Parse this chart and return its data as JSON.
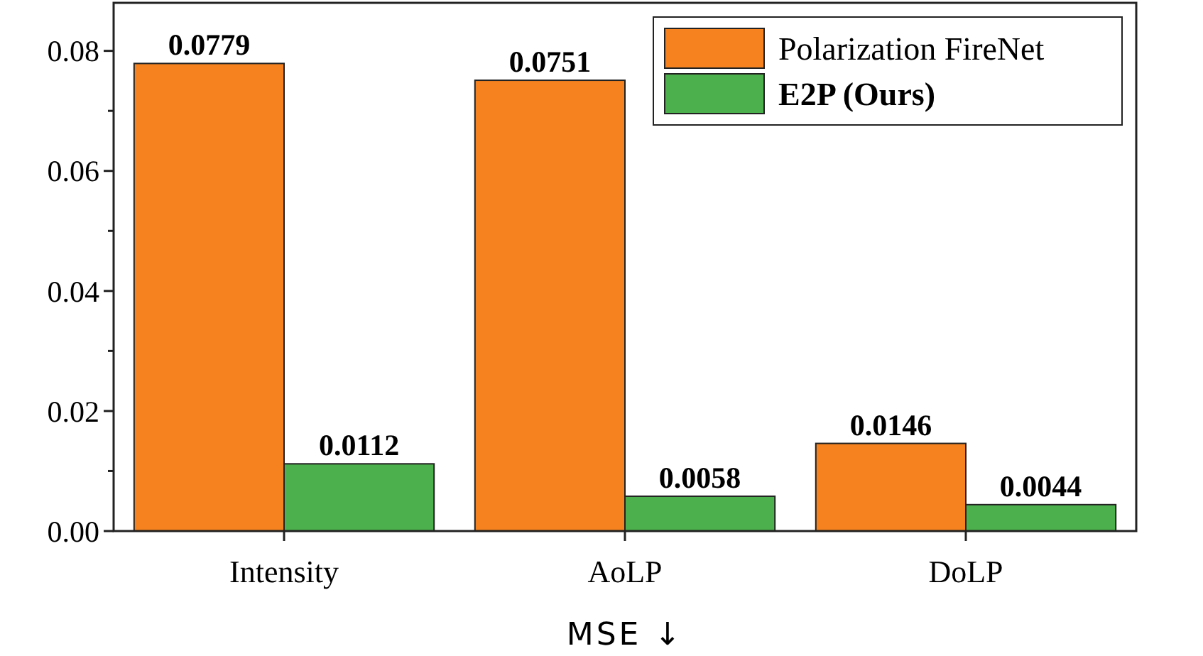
{
  "chart_data": {
    "type": "bar",
    "xlabel": "MSE ↓",
    "categories": [
      "Intensity",
      "AoLP",
      "DoLP"
    ],
    "series": [
      {
        "name": "Polarization FireNet",
        "color": "#f5821f",
        "values": [
          0.0779,
          0.0751,
          0.0146
        ]
      },
      {
        "name": "E2P (Ours)",
        "color": "#4cb04c",
        "values": [
          0.0112,
          0.0058,
          0.0044
        ]
      }
    ],
    "ylim": [
      0,
      0.088
    ],
    "yticks": [
      {
        "value": 0,
        "label": "0.00"
      },
      {
        "value": 0.01,
        "label": null
      },
      {
        "value": 0.02,
        "label": "0.02"
      },
      {
        "value": 0.03,
        "label": null
      },
      {
        "value": 0.04,
        "label": "0.04"
      },
      {
        "value": 0.05,
        "label": null
      },
      {
        "value": 0.06,
        "label": "0.06"
      },
      {
        "value": 0.07,
        "label": null
      },
      {
        "value": 0.08,
        "label": "0.08"
      }
    ],
    "data_labels": true,
    "legend": "top right",
    "grid": false
  }
}
